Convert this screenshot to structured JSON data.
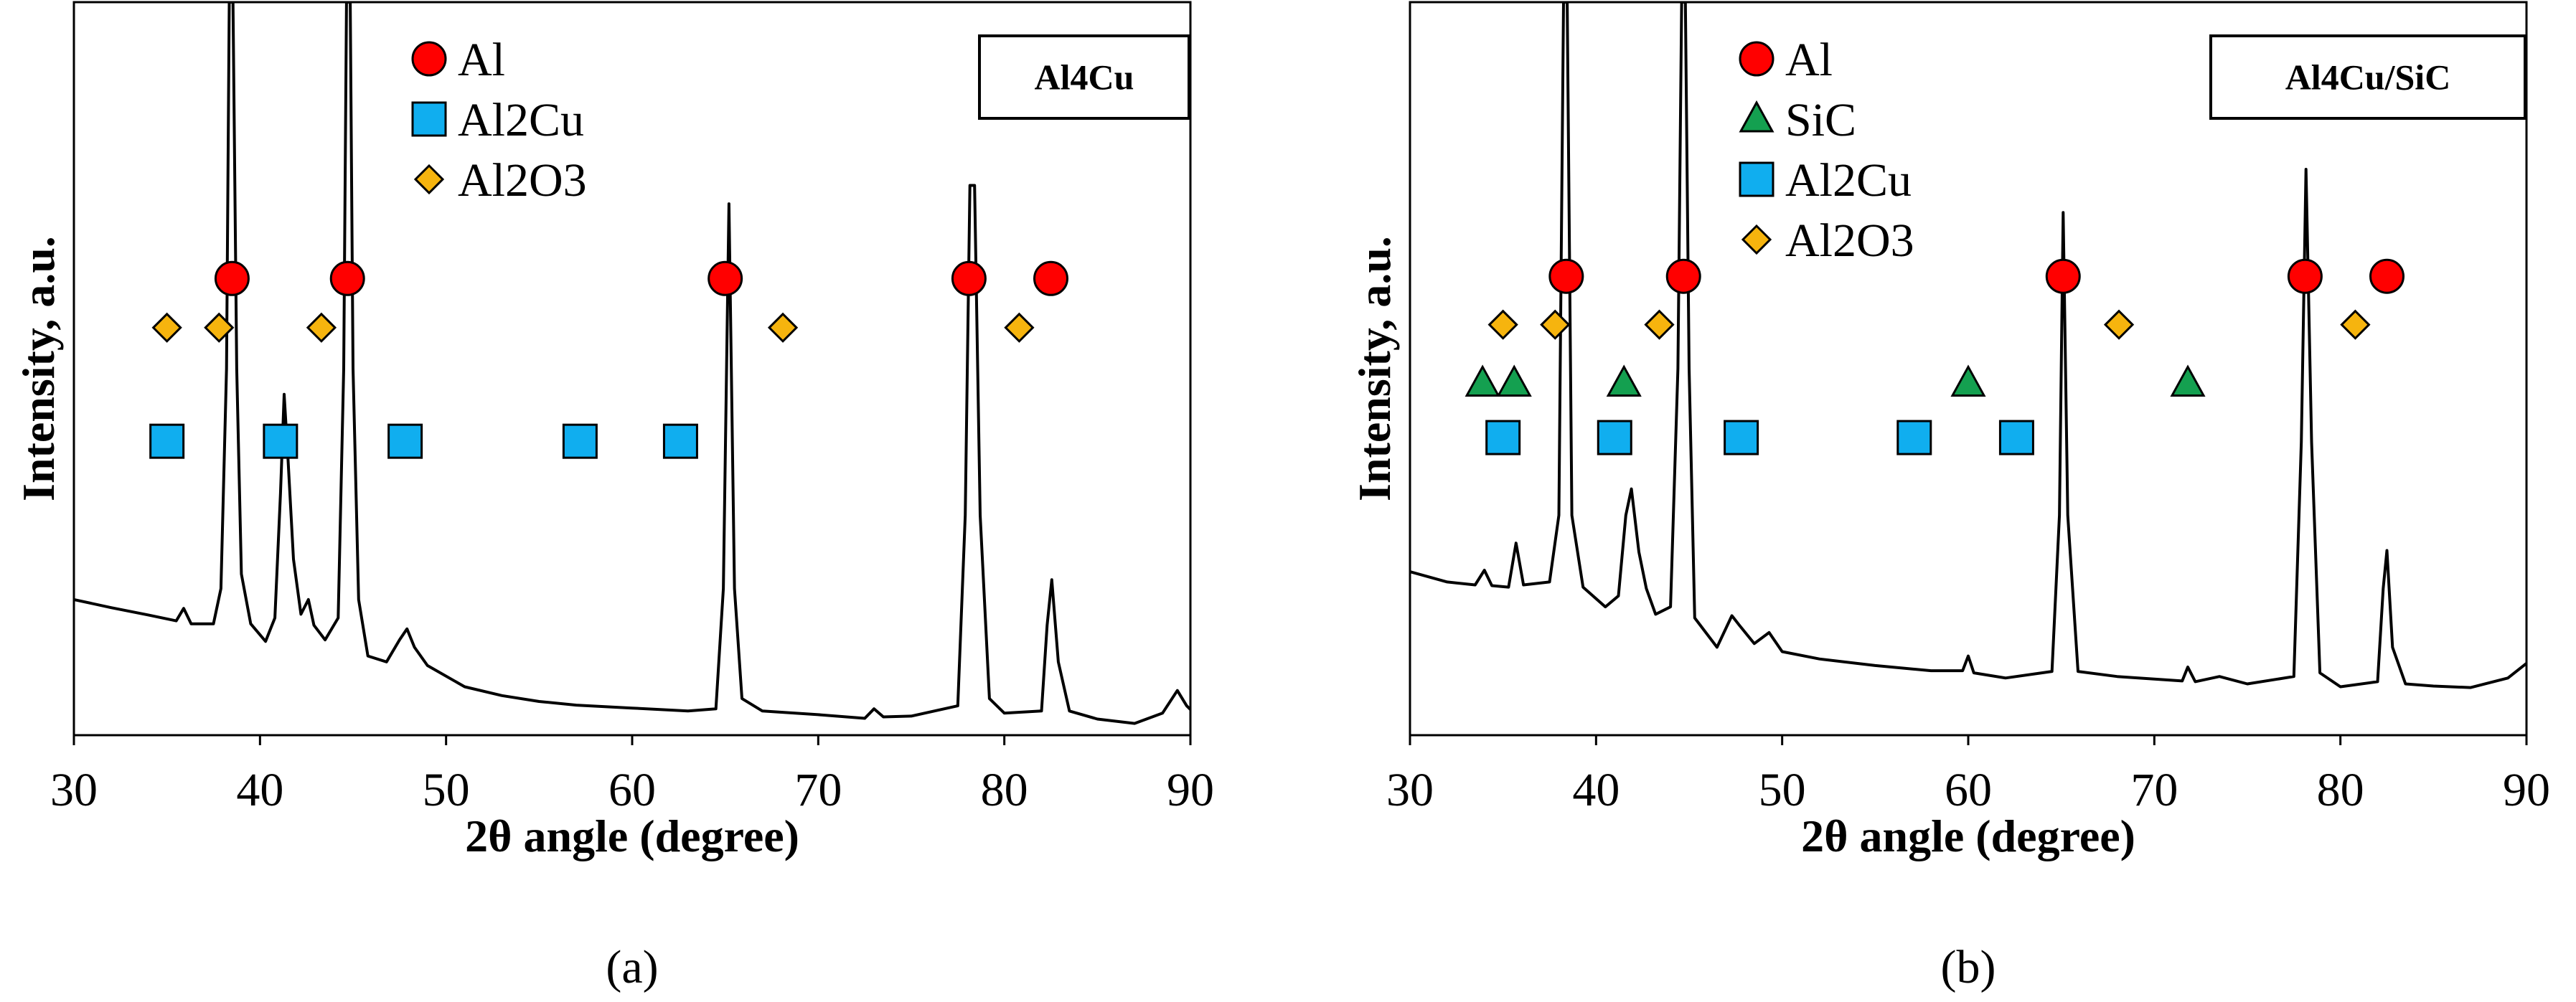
{
  "colors": {
    "Al": "#ff0000",
    "SiC": "#14a050",
    "Al2Cu": "#10aeef",
    "Al2O3": "#f6b40e",
    "curve": "#000000"
  },
  "chart_data": [
    {
      "type": "line",
      "panel_label": "(a)",
      "sample_label": "Al4Cu",
      "xlabel": "2θ angle (degree)",
      "ylabel": "Intensity, a.u.",
      "xlim": [
        30,
        90
      ],
      "ylim": [
        0,
        100
      ],
      "xticks": [
        "30",
        "40",
        "50",
        "60",
        "70",
        "80",
        "90"
      ],
      "grid": false,
      "legend_position": "top-center",
      "legend": [
        {
          "name": "Al",
          "marker": "circle"
        },
        {
          "name": "Al2Cu",
          "marker": "square"
        },
        {
          "name": "Al2O3",
          "marker": "diamond"
        }
      ],
      "series": [
        {
          "points": [
            [
              30,
              18.5
            ],
            [
              32,
              17.4
            ],
            [
              34,
              16.4
            ],
            [
              35.5,
              15.6
            ],
            [
              35.9,
              17.3
            ],
            [
              36.3,
              15.2
            ],
            [
              37.5,
              15.2
            ],
            [
              37.9,
              20.0
            ],
            [
              38.2,
              50.0
            ],
            [
              38.35,
              100
            ],
            [
              38.55,
              100
            ],
            [
              38.75,
              50.0
            ],
            [
              39.0,
              22.0
            ],
            [
              39.5,
              15.2
            ],
            [
              40.3,
              12.8
            ],
            [
              40.8,
              16.0
            ],
            [
              41.1,
              33.0
            ],
            [
              41.3,
              46.5
            ],
            [
              41.5,
              38.0
            ],
            [
              41.8,
              24.0
            ],
            [
              42.2,
              16.5
            ],
            [
              42.6,
              18.5
            ],
            [
              42.9,
              15.0
            ],
            [
              43.5,
              13.0
            ],
            [
              44.2,
              16.0
            ],
            [
              44.5,
              50.0
            ],
            [
              44.65,
              100
            ],
            [
              44.85,
              100
            ],
            [
              45.0,
              50.0
            ],
            [
              45.3,
              18.5
            ],
            [
              45.8,
              10.8
            ],
            [
              46.8,
              10.0
            ],
            [
              47.5,
              13.0
            ],
            [
              47.9,
              14.5
            ],
            [
              48.3,
              12.0
            ],
            [
              49.0,
              9.5
            ],
            [
              51,
              6.6
            ],
            [
              53,
              5.4
            ],
            [
              55,
              4.6
            ],
            [
              57,
              4.1
            ],
            [
              60,
              3.7
            ],
            [
              63,
              3.3
            ],
            [
              64.5,
              3.6
            ],
            [
              64.9,
              20.0
            ],
            [
              65.2,
              72.5
            ],
            [
              65.5,
              20.0
            ],
            [
              65.9,
              5.0
            ],
            [
              67,
              3.3
            ],
            [
              70,
              2.8
            ],
            [
              72.5,
              2.3
            ],
            [
              73.0,
              3.6
            ],
            [
              73.5,
              2.5
            ],
            [
              75,
              2.6
            ],
            [
              77.5,
              4.0
            ],
            [
              77.9,
              30.0
            ],
            [
              78.15,
              75.0
            ],
            [
              78.4,
              75.0
            ],
            [
              78.7,
              30.0
            ],
            [
              79.2,
              5.0
            ],
            [
              80,
              3.0
            ],
            [
              82.0,
              3.3
            ],
            [
              82.3,
              15.0
            ],
            [
              82.55,
              21.2
            ],
            [
              82.9,
              10.0
            ],
            [
              83.5,
              3.3
            ],
            [
              85,
              2.2
            ],
            [
              87,
              1.6
            ],
            [
              88.5,
              3.0
            ],
            [
              89.3,
              6.1
            ],
            [
              89.8,
              4.0
            ],
            [
              90,
              3.5
            ]
          ]
        }
      ],
      "phase_markers": [
        {
          "phase": "Al",
          "marker": "circle",
          "positions": [
            [
              38.5,
              62.3
            ],
            [
              44.7,
              62.3
            ],
            [
              65.0,
              62.3
            ],
            [
              78.1,
              62.3
            ],
            [
              82.5,
              62.3
            ]
          ]
        },
        {
          "phase": "Al2O3",
          "marker": "diamond",
          "positions": [
            [
              35.0,
              55.6
            ],
            [
              37.8,
              55.6
            ],
            [
              43.3,
              55.6
            ],
            [
              68.1,
              55.6
            ],
            [
              80.8,
              55.6
            ]
          ]
        },
        {
          "phase": "Al2Cu",
          "marker": "square",
          "positions": [
            [
              35.0,
              40.1
            ],
            [
              41.1,
              40.1
            ],
            [
              47.8,
              40.1
            ],
            [
              57.2,
              40.1
            ],
            [
              62.6,
              40.1
            ]
          ]
        }
      ]
    },
    {
      "type": "line",
      "panel_label": "(b)",
      "sample_label": "Al4Cu/SiC",
      "xlabel": "2θ angle (degree)",
      "ylabel": "Intensity, a.u.",
      "xlim": [
        30,
        90
      ],
      "ylim": [
        0,
        100
      ],
      "xticks": [
        "30",
        "40",
        "50",
        "60",
        "70",
        "80",
        "90"
      ],
      "grid": false,
      "legend_position": "top-center",
      "legend": [
        {
          "name": "Al",
          "marker": "circle"
        },
        {
          "name": "SiC",
          "marker": "triangle"
        },
        {
          "name": "Al2Cu",
          "marker": "square"
        },
        {
          "name": "Al2O3",
          "marker": "diamond"
        }
      ],
      "series": [
        {
          "points": [
            [
              30,
              22.3
            ],
            [
              32,
              20.9
            ],
            [
              33.5,
              20.5
            ],
            [
              34.0,
              22.5
            ],
            [
              34.4,
              20.4
            ],
            [
              35.3,
              20.2
            ],
            [
              35.7,
              26.2
            ],
            [
              36.1,
              20.5
            ],
            [
              37.5,
              20.9
            ],
            [
              38.0,
              30.0
            ],
            [
              38.25,
              100
            ],
            [
              38.45,
              100
            ],
            [
              38.7,
              30.0
            ],
            [
              39.3,
              20.2
            ],
            [
              40.5,
              17.5
            ],
            [
              41.2,
              19.0
            ],
            [
              41.6,
              30.0
            ],
            [
              41.9,
              33.6
            ],
            [
              42.3,
              25.0
            ],
            [
              42.7,
              20.0
            ],
            [
              43.2,
              16.5
            ],
            [
              44.0,
              17.5
            ],
            [
              44.4,
              50.0
            ],
            [
              44.6,
              100
            ],
            [
              44.8,
              100
            ],
            [
              45.0,
              50.0
            ],
            [
              45.3,
              16.0
            ],
            [
              46.5,
              12.0
            ],
            [
              47.3,
              16.3
            ],
            [
              47.7,
              15.0
            ],
            [
              48.5,
              12.5
            ],
            [
              49.3,
              14.0
            ],
            [
              50,
              11.4
            ],
            [
              52,
              10.4
            ],
            [
              55,
              9.5
            ],
            [
              58,
              8.8
            ],
            [
              59.7,
              8.8
            ],
            [
              60.0,
              10.8
            ],
            [
              60.3,
              8.5
            ],
            [
              62,
              7.8
            ],
            [
              64.5,
              8.7
            ],
            [
              64.9,
              30.0
            ],
            [
              65.1,
              71.3
            ],
            [
              65.35,
              30.0
            ],
            [
              65.9,
              8.7
            ],
            [
              68,
              8.0
            ],
            [
              71.5,
              7.4
            ],
            [
              71.8,
              9.3
            ],
            [
              72.2,
              7.3
            ],
            [
              73.5,
              8.0
            ],
            [
              75,
              7.0
            ],
            [
              77.5,
              8.0
            ],
            [
              77.9,
              40.0
            ],
            [
              78.15,
              77.2
            ],
            [
              78.45,
              40.0
            ],
            [
              78.9,
              8.5
            ],
            [
              80,
              6.6
            ],
            [
              82.0,
              7.3
            ],
            [
              82.3,
              20.0
            ],
            [
              82.5,
              25.2
            ],
            [
              82.8,
              12.0
            ],
            [
              83.5,
              7.0
            ],
            [
              85,
              6.7
            ],
            [
              87,
              6.5
            ],
            [
              89,
              7.8
            ],
            [
              90,
              9.8
            ]
          ]
        }
      ],
      "phase_markers": [
        {
          "phase": "Al",
          "marker": "circle",
          "positions": [
            [
              38.4,
              62.6
            ],
            [
              44.7,
              62.6
            ],
            [
              65.1,
              62.6
            ],
            [
              78.1,
              62.6
            ],
            [
              82.5,
              62.6
            ]
          ]
        },
        {
          "phase": "Al2O3",
          "marker": "diamond",
          "positions": [
            [
              35.0,
              56.0
            ],
            [
              37.8,
              56.0
            ],
            [
              43.4,
              56.0
            ],
            [
              68.1,
              56.0
            ],
            [
              80.8,
              56.0
            ]
          ]
        },
        {
          "phase": "SiC",
          "marker": "triangle",
          "positions": [
            [
              33.9,
              48.0
            ],
            [
              35.6,
              48.0
            ],
            [
              41.5,
              48.0
            ],
            [
              60.0,
              48.0
            ],
            [
              71.8,
              48.0
            ]
          ]
        },
        {
          "phase": "Al2Cu",
          "marker": "square",
          "positions": [
            [
              35.0,
              40.6
            ],
            [
              41.0,
              40.6
            ],
            [
              47.8,
              40.6
            ],
            [
              57.1,
              40.6
            ],
            [
              62.6,
              40.6
            ]
          ]
        }
      ]
    }
  ]
}
